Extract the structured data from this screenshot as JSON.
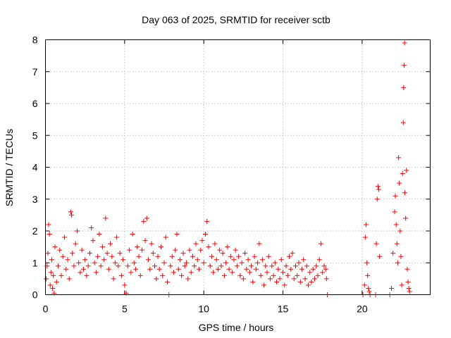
{
  "chart_data": {
    "type": "scatter",
    "title": "Day 063 of 2025, SRMTID for receiver sctb",
    "xlabel": "GPS time / hours",
    "ylabel": "SRMTID / TECUs",
    "xlim": [
      0,
      24.3
    ],
    "ylim": [
      0,
      8
    ],
    "x_ticks": [
      "0",
      "5",
      "10",
      "15",
      "20"
    ],
    "y_ticks": [
      "0",
      "1",
      "2",
      "3",
      "4",
      "5",
      "6",
      "7",
      "8"
    ],
    "grid": true,
    "marker": "+",
    "color": "#ff0000",
    "series": [
      {
        "name": "SRMTID",
        "points": [
          [
            0.05,
            0.5
          ],
          [
            0.1,
            0.9
          ],
          [
            0.15,
            1.3
          ],
          [
            0.2,
            2.2
          ],
          [
            0.25,
            1.9
          ],
          [
            0.3,
            0.3
          ],
          [
            0.35,
            0.7
          ],
          [
            0.4,
            1.1
          ],
          [
            0.45,
            0.2
          ],
          [
            0.5,
            0.6
          ],
          [
            0.55,
            0.05
          ],
          [
            0.6,
            1.5
          ],
          [
            0.7,
            0.4
          ],
          [
            0.8,
            0.9
          ],
          [
            0.9,
            1.4
          ],
          [
            1.0,
            0.6
          ],
          [
            1.1,
            1.2
          ],
          [
            1.2,
            1.8
          ],
          [
            1.3,
            0.8
          ],
          [
            1.4,
            1.1
          ],
          [
            1.5,
            0.5
          ],
          [
            1.6,
            2.6
          ],
          [
            1.65,
            2.5
          ],
          [
            1.7,
            1.3
          ],
          [
            1.8,
            0.9
          ],
          [
            1.9,
            1.6
          ],
          [
            2.0,
            2.0
          ],
          [
            2.1,
            1.0
          ],
          [
            2.2,
            0.7
          ],
          [
            2.3,
            1.4
          ],
          [
            2.4,
            0.8
          ],
          [
            2.5,
            1.1
          ],
          [
            2.6,
            0.6
          ],
          [
            2.7,
            0.9
          ],
          [
            2.8,
            1.3
          ],
          [
            2.9,
            2.1
          ],
          [
            3.0,
            1.7
          ],
          [
            3.1,
            1.0
          ],
          [
            3.2,
            0.7
          ],
          [
            3.3,
            1.2
          ],
          [
            3.4,
            1.9
          ],
          [
            3.5,
            0.9
          ],
          [
            3.6,
            1.5
          ],
          [
            3.7,
            1.1
          ],
          [
            3.8,
            2.4
          ],
          [
            3.9,
            1.3
          ],
          [
            4.0,
            0.8
          ],
          [
            4.1,
            1.6
          ],
          [
            4.2,
            1.2
          ],
          [
            4.3,
            0.5
          ],
          [
            4.4,
            1.0
          ],
          [
            4.5,
            1.8
          ],
          [
            4.6,
            0.9
          ],
          [
            4.7,
            1.3
          ],
          [
            4.8,
            0.6
          ],
          [
            4.9,
            1.1
          ],
          [
            5.0,
            0.3
          ],
          [
            5.1,
            0.05
          ],
          [
            5.2,
            0.9
          ],
          [
            5.3,
            1.4
          ],
          [
            5.4,
            0.7
          ],
          [
            5.5,
            1.9
          ],
          [
            5.6,
            1.0
          ],
          [
            5.7,
            0.8
          ],
          [
            5.8,
            1.5
          ],
          [
            5.9,
            1.2
          ],
          [
            6.0,
            0.6
          ],
          [
            6.1,
            1.4
          ],
          [
            6.2,
            2.3
          ],
          [
            6.3,
            1.7
          ],
          [
            6.4,
            2.4
          ],
          [
            6.5,
            1.1
          ],
          [
            6.6,
            0.8
          ],
          [
            6.7,
            1.6
          ],
          [
            6.8,
            1.3
          ],
          [
            6.9,
            0.9
          ],
          [
            7.0,
            0.5
          ],
          [
            7.1,
            1.2
          ],
          [
            7.2,
            0.8
          ],
          [
            7.3,
            1.5
          ],
          [
            7.4,
            0.6
          ],
          [
            7.5,
            1.0
          ],
          [
            7.6,
            1.8
          ],
          [
            7.7,
            0.4
          ],
          [
            7.8,
            0.0
          ],
          [
            7.9,
            0.9
          ],
          [
            8.0,
            1.2
          ],
          [
            8.1,
            0.7
          ],
          [
            8.2,
            1.4
          ],
          [
            8.3,
            1.9
          ],
          [
            8.4,
            0.8
          ],
          [
            8.5,
            1.1
          ],
          [
            8.6,
            0.6
          ],
          [
            8.7,
            1.3
          ],
          [
            8.8,
            0.9
          ],
          [
            8.9,
            1.0
          ],
          [
            9.0,
            0.5
          ],
          [
            9.1,
            1.4
          ],
          [
            9.2,
            0.7
          ],
          [
            9.3,
            1.2
          ],
          [
            9.4,
            0.9
          ],
          [
            9.5,
            1.6
          ],
          [
            9.6,
            1.1
          ],
          [
            9.7,
            0.8
          ],
          [
            9.8,
            1.4
          ],
          [
            9.9,
            1.7
          ],
          [
            10.0,
            1.0
          ],
          [
            10.1,
            1.9
          ],
          [
            10.2,
            2.3
          ],
          [
            10.3,
            1.5
          ],
          [
            10.4,
            0.9
          ],
          [
            10.5,
            1.2
          ],
          [
            10.6,
            0.7
          ],
          [
            10.7,
            1.6
          ],
          [
            10.8,
            1.1
          ],
          [
            10.9,
            0.8
          ],
          [
            11.0,
            1.4
          ],
          [
            11.1,
            0.9
          ],
          [
            11.2,
            1.3
          ],
          [
            11.3,
            0.6
          ],
          [
            11.4,
            1.0
          ],
          [
            11.5,
            1.5
          ],
          [
            11.6,
            0.8
          ],
          [
            11.7,
            1.2
          ],
          [
            11.8,
            0.7
          ],
          [
            11.9,
            1.1
          ],
          [
            12.0,
            1.4
          ],
          [
            12.1,
            0.9
          ],
          [
            12.2,
            1.2
          ],
          [
            12.3,
            0.6
          ],
          [
            12.4,
            1.0
          ],
          [
            12.5,
            0.5
          ],
          [
            12.6,
            1.3
          ],
          [
            12.7,
            0.8
          ],
          [
            12.8,
            1.1
          ],
          [
            12.9,
            0.7
          ],
          [
            13.0,
            0.9
          ],
          [
            13.1,
            0.4
          ],
          [
            13.2,
            1.2
          ],
          [
            13.3,
            0.8
          ],
          [
            13.4,
            1.0
          ],
          [
            13.5,
            1.6
          ],
          [
            13.6,
            0.6
          ],
          [
            13.7,
            1.1
          ],
          [
            13.8,
            0.3
          ],
          [
            13.9,
            0.9
          ],
          [
            14.0,
            0.7
          ],
          [
            14.1,
            1.2
          ],
          [
            14.2,
            0.5
          ],
          [
            14.3,
            0.9
          ],
          [
            14.4,
            0.6
          ],
          [
            14.5,
            1.0
          ],
          [
            14.6,
            0.4
          ],
          [
            14.7,
            0.8
          ],
          [
            14.8,
            0.5
          ],
          [
            14.9,
            1.1
          ],
          [
            15.0,
            0.7
          ],
          [
            15.1,
            0.3
          ],
          [
            15.2,
            0.9
          ],
          [
            15.3,
            0.6
          ],
          [
            15.4,
            1.2
          ],
          [
            15.5,
            0.8
          ],
          [
            15.6,
            1.3
          ],
          [
            15.7,
            0.5
          ],
          [
            15.8,
            0.9
          ],
          [
            15.9,
            0.6
          ],
          [
            16.0,
            1.0
          ],
          [
            16.1,
            0.4
          ],
          [
            16.2,
            0.8
          ],
          [
            16.3,
            1.1
          ],
          [
            16.4,
            0.5
          ],
          [
            16.5,
            0.9
          ],
          [
            16.6,
            0.3
          ],
          [
            16.7,
            0.7
          ],
          [
            16.8,
            0.4
          ],
          [
            16.9,
            0.8
          ],
          [
            17.0,
            0.5
          ],
          [
            17.1,
            0.9
          ],
          [
            17.2,
            0.6
          ],
          [
            17.3,
            1.1
          ],
          [
            17.4,
            1.6
          ],
          [
            17.5,
            0.7
          ],
          [
            17.6,
            0.9
          ],
          [
            17.7,
            0.8
          ],
          [
            17.75,
            0.5
          ],
          [
            17.8,
            0.0
          ],
          [
            20.05,
            0.0
          ],
          [
            20.15,
            0.3
          ],
          [
            20.2,
            1.8
          ],
          [
            20.25,
            2.2
          ],
          [
            20.3,
            1.0
          ],
          [
            20.35,
            0.6
          ],
          [
            20.4,
            0.2
          ],
          [
            20.45,
            0.1
          ],
          [
            20.5,
            0.0
          ],
          [
            20.85,
            0.0
          ],
          [
            20.9,
            1.6
          ],
          [
            20.95,
            3.0
          ],
          [
            21.0,
            3.4
          ],
          [
            21.05,
            3.3
          ],
          [
            21.1,
            1.2
          ],
          [
            21.75,
            0.0
          ],
          [
            21.85,
            0.2
          ],
          [
            21.95,
            1.3
          ],
          [
            22.05,
            2.6
          ],
          [
            22.1,
            3.1
          ],
          [
            22.15,
            2.2
          ],
          [
            22.2,
            1.6
          ],
          [
            22.25,
            1.0
          ],
          [
            22.3,
            4.3
          ],
          [
            22.35,
            3.5
          ],
          [
            22.4,
            2.0
          ],
          [
            22.45,
            1.2
          ],
          [
            22.5,
            0.3
          ],
          [
            22.55,
            3.8
          ],
          [
            22.6,
            5.4
          ],
          [
            22.62,
            6.5
          ],
          [
            22.65,
            7.2
          ],
          [
            22.68,
            7.9
          ],
          [
            22.7,
            3.2
          ],
          [
            22.75,
            2.4
          ],
          [
            22.8,
            3.9
          ],
          [
            22.85,
            0.8
          ],
          [
            22.9,
            0.4
          ],
          [
            22.95,
            0.2
          ],
          [
            23.0,
            0.1
          ]
        ]
      }
    ]
  }
}
